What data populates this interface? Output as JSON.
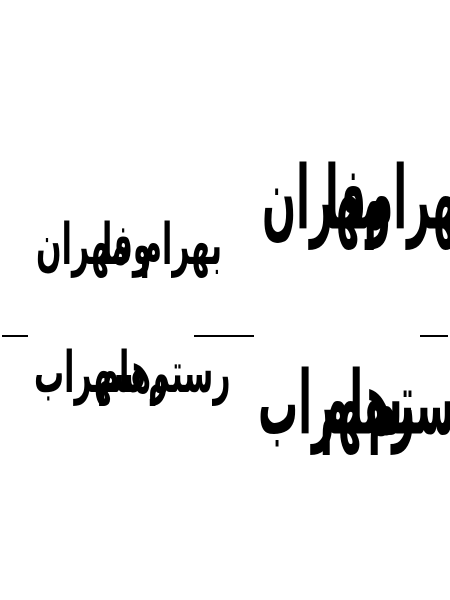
{
  "lines": {
    "small_top": [
      "بهرام",
      "وفا",
      "مهران"
    ],
    "small_bottom": [
      "رستم",
      "رهام",
      "سهراب"
    ],
    "large_top": [
      "بهرام",
      "وفا",
      "مهران"
    ],
    "large_bottom": [
      "رستم",
      "رهام",
      "سهراب"
    ]
  },
  "colors": {
    "ink": "#000000",
    "background": "#ffffff"
  }
}
